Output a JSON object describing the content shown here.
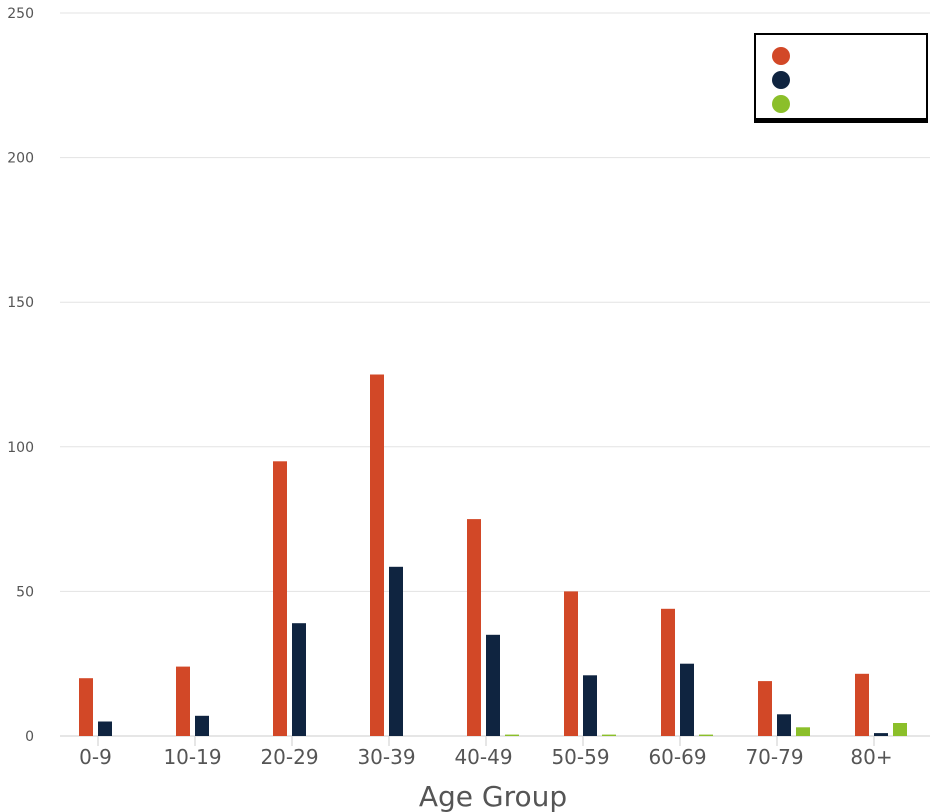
{
  "chart_data": {
    "type": "bar",
    "categories": [
      "0-9",
      "10-19",
      "20-29",
      "30-39",
      "40-49",
      "50-59",
      "60-69",
      "70-79",
      "80+"
    ],
    "series": [
      {
        "color": "#d24827",
        "values": [
          20,
          24,
          95,
          125,
          75,
          50,
          44,
          19,
          21.5
        ]
      },
      {
        "color": "#0f2440",
        "values": [
          5,
          7,
          39,
          58.5,
          35,
          21,
          25,
          7.5,
          1
        ]
      },
      {
        "color": "#8bbf2a",
        "values": [
          0,
          0,
          0,
          0,
          0.5,
          0.5,
          0.5,
          3,
          4.5
        ]
      }
    ],
    "title": "",
    "xlabel": "Age Group",
    "ylabel": "",
    "ylim": [
      0,
      250
    ],
    "yticks": [
      0,
      50,
      100,
      150,
      200,
      250
    ],
    "grid": true,
    "legend_placement": "top-right"
  }
}
